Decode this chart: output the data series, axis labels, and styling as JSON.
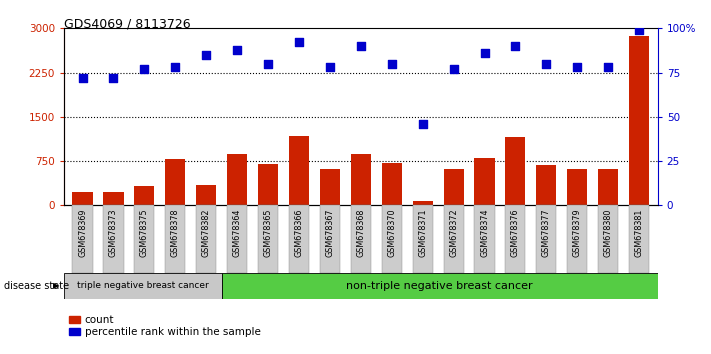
{
  "title": "GDS4069 / 8113726",
  "samples": [
    "GSM678369",
    "GSM678373",
    "GSM678375",
    "GSM678378",
    "GSM678382",
    "GSM678364",
    "GSM678365",
    "GSM678366",
    "GSM678367",
    "GSM678368",
    "GSM678370",
    "GSM678371",
    "GSM678372",
    "GSM678374",
    "GSM678376",
    "GSM678377",
    "GSM678379",
    "GSM678380",
    "GSM678381"
  ],
  "counts": [
    230,
    230,
    330,
    780,
    350,
    870,
    700,
    1180,
    620,
    870,
    720,
    70,
    620,
    800,
    1150,
    690,
    620,
    620,
    2870
  ],
  "percentiles": [
    72,
    72,
    77,
    78,
    85,
    88,
    80,
    92,
    78,
    90,
    80,
    46,
    77,
    86,
    90,
    80,
    78,
    78,
    99
  ],
  "group1_count": 5,
  "group1_label": "triple negative breast cancer",
  "group2_label": "non-triple negative breast cancer",
  "disease_state_label": "disease state",
  "bar_color": "#cc2200",
  "dot_color": "#0000cc",
  "ylim_left": [
    0,
    3000
  ],
  "ylim_right": [
    0,
    100
  ],
  "yticks_left": [
    0,
    750,
    1500,
    2250,
    3000
  ],
  "ytick_labels_left": [
    "0",
    "750",
    "1500",
    "2250",
    "3000"
  ],
  "yticks_right": [
    0,
    25,
    50,
    75,
    100
  ],
  "ytick_labels_right": [
    "0",
    "25",
    "50",
    "75",
    "100%"
  ],
  "legend_count_label": "count",
  "legend_pct_label": "percentile rank within the sample",
  "group1_color": "#c8c8c8",
  "group2_color": "#55cc44",
  "tick_bg_color": "#cccccc",
  "hgrid_ticks": [
    750,
    1500,
    2250
  ]
}
